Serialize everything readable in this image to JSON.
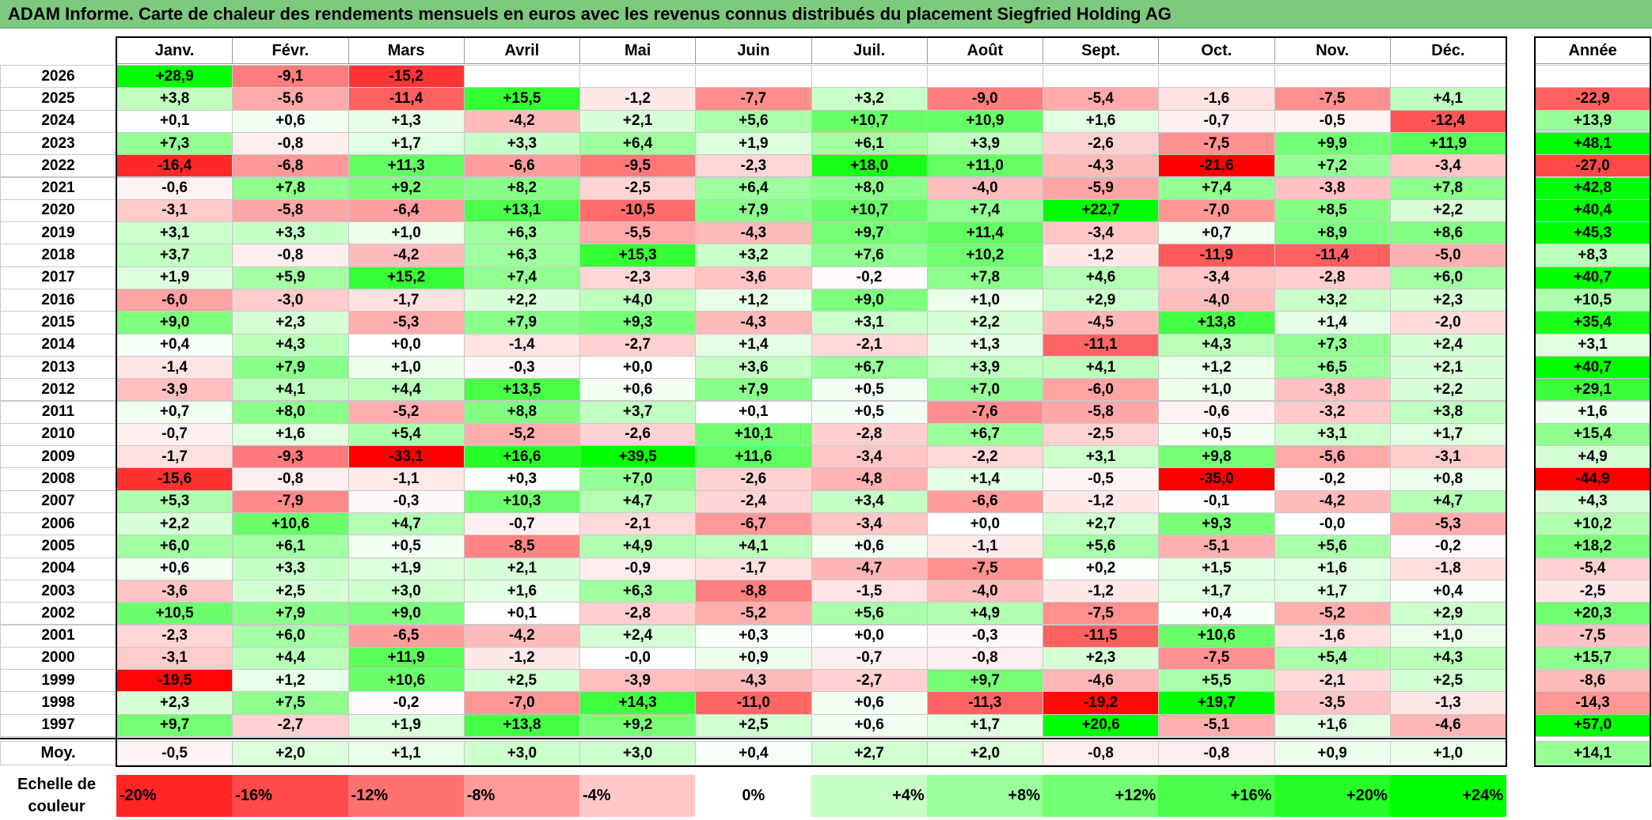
{
  "chart_data": {
    "type": "heatmap",
    "title": "ADAM Informe. Carte de chaleur des rendements mensuels en euros avec les revenus connus distribués du placement Siegfried Holding AG",
    "months": [
      "Janv.",
      "Févr.",
      "Mars",
      "Avril",
      "Mai",
      "Juin",
      "Juil.",
      "Août",
      "Sept.",
      "Oct.",
      "Nov.",
      "Déc."
    ],
    "year_header": "Année",
    "rows": [
      {
        "year": "2026",
        "values": [
          "+28,9",
          "-9,1",
          "-15,2",
          "",
          "",
          "",
          "",
          "",
          "",
          "",
          "",
          ""
        ],
        "annual": ""
      },
      {
        "year": "2025",
        "values": [
          "+3,8",
          "-5,6",
          "-11,4",
          "+15,5",
          "-1,2",
          "-7,7",
          "+3,2",
          "-9,0",
          "-5,4",
          "-1,6",
          "-7,5",
          "+4,1"
        ],
        "annual": "-22,9"
      },
      {
        "year": "2024",
        "values": [
          "+0,1",
          "+0,6",
          "+1,3",
          "-4,2",
          "+2,1",
          "+5,6",
          "+10,7",
          "+10,9",
          "+1,6",
          "-0,7",
          "-0,5",
          "-12,4"
        ],
        "annual": "+13,9"
      },
      {
        "year": "2023",
        "values": [
          "+7,3",
          "-0,8",
          "+1,7",
          "+3,3",
          "+6,4",
          "+1,9",
          "+6,1",
          "+3,9",
          "-2,6",
          "-7,5",
          "+9,9",
          "+11,9"
        ],
        "annual": "+48,1"
      },
      {
        "year": "2022",
        "values": [
          "-16,4",
          "-6,8",
          "+11,3",
          "-6,6",
          "-9,5",
          "-2,3",
          "+18,0",
          "+11,0",
          "-4,3",
          "-21,6",
          "+7,2",
          "-3,4"
        ],
        "annual": "-27,0"
      },
      {
        "year": "2021",
        "values": [
          "-0,6",
          "+7,8",
          "+9,2",
          "+8,2",
          "-2,5",
          "+6,4",
          "+8,0",
          "-4,0",
          "-5,9",
          "+7,4",
          "-3,8",
          "+7,8"
        ],
        "annual": "+42,8"
      },
      {
        "year": "2020",
        "values": [
          "-3,1",
          "-5,8",
          "-6,4",
          "+13,1",
          "-10,5",
          "+7,9",
          "+10,7",
          "+7,4",
          "+22,7",
          "-7,0",
          "+8,5",
          "+2,2"
        ],
        "annual": "+40,4"
      },
      {
        "year": "2019",
        "values": [
          "+3,1",
          "+3,3",
          "+1,0",
          "+6,3",
          "-5,5",
          "-4,3",
          "+9,7",
          "+11,4",
          "-3,4",
          "+0,7",
          "+8,9",
          "+8,6"
        ],
        "annual": "+45,3"
      },
      {
        "year": "2018",
        "values": [
          "+3,7",
          "-0,8",
          "-4,2",
          "+6,3",
          "+15,3",
          "+3,2",
          "+7,6",
          "+10,2",
          "-1,2",
          "-11,9",
          "-11,4",
          "-5,0"
        ],
        "annual": "+8,3"
      },
      {
        "year": "2017",
        "values": [
          "+1,9",
          "+5,9",
          "+15,2",
          "+7,4",
          "-2,3",
          "-3,6",
          "-0,2",
          "+7,8",
          "+4,6",
          "-3,4",
          "-2,8",
          "+6,0"
        ],
        "annual": "+40,7"
      },
      {
        "year": "2016",
        "values": [
          "-6,0",
          "-3,0",
          "-1,7",
          "+2,2",
          "+4,0",
          "+1,2",
          "+9,0",
          "+1,0",
          "+2,9",
          "-4,0",
          "+3,2",
          "+2,3"
        ],
        "annual": "+10,5"
      },
      {
        "year": "2015",
        "values": [
          "+9,0",
          "+2,3",
          "-5,3",
          "+7,9",
          "+9,3",
          "-4,3",
          "+3,1",
          "+2,2",
          "-4,5",
          "+13,8",
          "+1,4",
          "-2,0"
        ],
        "annual": "+35,4"
      },
      {
        "year": "2014",
        "values": [
          "+0,4",
          "+4,3",
          "+0,0",
          "-1,4",
          "-2,7",
          "+1,4",
          "-2,1",
          "+1,3",
          "-11,1",
          "+4,3",
          "+7,3",
          "+2,4"
        ],
        "annual": "+3,1"
      },
      {
        "year": "2013",
        "values": [
          "-1,4",
          "+7,9",
          "+1,0",
          "-0,3",
          "+0,0",
          "+3,6",
          "+6,7",
          "+3,9",
          "+4,1",
          "+1,2",
          "+6,5",
          "+2,1"
        ],
        "annual": "+40,7"
      },
      {
        "year": "2012",
        "values": [
          "-3,9",
          "+4,1",
          "+4,4",
          "+13,5",
          "+0,6",
          "+7,9",
          "+0,5",
          "+7,0",
          "-6,0",
          "+1,0",
          "-3,8",
          "+2,2"
        ],
        "annual": "+29,1"
      },
      {
        "year": "2011",
        "values": [
          "+0,7",
          "+8,0",
          "-5,2",
          "+8,8",
          "+3,7",
          "+0,1",
          "+0,5",
          "-7,6",
          "-5,8",
          "-0,6",
          "-3,2",
          "+3,8"
        ],
        "annual": "+1,6"
      },
      {
        "year": "2010",
        "values": [
          "-0,7",
          "+1,6",
          "+5,4",
          "-5,2",
          "-2,6",
          "+10,1",
          "-2,8",
          "+6,7",
          "-2,5",
          "+0,5",
          "+3,1",
          "+1,7"
        ],
        "annual": "+15,4"
      },
      {
        "year": "2009",
        "values": [
          "-1,7",
          "-9,3",
          "-33,1",
          "+16,6",
          "+39,5",
          "+11,6",
          "-3,4",
          "-2,2",
          "+3,1",
          "+9,8",
          "-5,6",
          "-3,1"
        ],
        "annual": "+4,9"
      },
      {
        "year": "2008",
        "values": [
          "-15,6",
          "-0,8",
          "-1,1",
          "+0,3",
          "+7,0",
          "-2,6",
          "-4,8",
          "+1,4",
          "-0,5",
          "-35,0",
          "-0,2",
          "+0,8"
        ],
        "annual": "-44,9"
      },
      {
        "year": "2007",
        "values": [
          "+5,3",
          "-7,9",
          "-0,3",
          "+10,3",
          "+4,7",
          "-2,4",
          "+3,4",
          "-6,6",
          "-1,2",
          "-0,1",
          "-4,2",
          "+4,7"
        ],
        "annual": "+4,3"
      },
      {
        "year": "2006",
        "values": [
          "+2,2",
          "+10,6",
          "+4,7",
          "-0,7",
          "-2,1",
          "-6,7",
          "-3,4",
          "+0,0",
          "+2,7",
          "+9,3",
          "-0,0",
          "-5,3"
        ],
        "annual": "+10,2"
      },
      {
        "year": "2005",
        "values": [
          "+6,0",
          "+6,1",
          "+0,5",
          "-8,5",
          "+4,9",
          "+4,1",
          "+0,6",
          "-1,1",
          "+5,6",
          "-5,1",
          "+5,6",
          "-0,2"
        ],
        "annual": "+18,2"
      },
      {
        "year": "2004",
        "values": [
          "+0,6",
          "+3,3",
          "+1,9",
          "+2,1",
          "-0,9",
          "-1,7",
          "-4,7",
          "-7,5",
          "+0,2",
          "+1,5",
          "+1,6",
          "-1,8"
        ],
        "annual": "-5,4"
      },
      {
        "year": "2003",
        "values": [
          "-3,6",
          "+2,5",
          "+3,0",
          "+1,6",
          "+6,3",
          "-8,8",
          "-1,5",
          "-4,0",
          "-1,2",
          "+1,7",
          "+1,7",
          "+0,4"
        ],
        "annual": "-2,5"
      },
      {
        "year": "2002",
        "values": [
          "+10,5",
          "+7,9",
          "+9,0",
          "+0,1",
          "-2,8",
          "-5,2",
          "+5,6",
          "+4,9",
          "-7,5",
          "+0,4",
          "-5,2",
          "+2,9"
        ],
        "annual": "+20,3"
      },
      {
        "year": "2001",
        "values": [
          "-2,3",
          "+6,0",
          "-6,5",
          "-4,2",
          "+2,4",
          "+0,3",
          "+0,0",
          "-0,3",
          "-11,5",
          "+10,6",
          "-1,6",
          "+1,0"
        ],
        "annual": "-7,5"
      },
      {
        "year": "2000",
        "values": [
          "-3,1",
          "+4,4",
          "+11,9",
          "-1,2",
          "-0,0",
          "+0,9",
          "-0,7",
          "-0,8",
          "+2,3",
          "-7,5",
          "+5,4",
          "+4,3"
        ],
        "annual": "+15,7"
      },
      {
        "year": "1999",
        "values": [
          "-19,5",
          "+1,2",
          "+10,6",
          "+2,5",
          "-3,9",
          "-4,3",
          "-2,7",
          "+9,7",
          "-4,6",
          "+5,5",
          "-2,1",
          "+2,5"
        ],
        "annual": "-8,6"
      },
      {
        "year": "1998",
        "values": [
          "+2,3",
          "+7,5",
          "-0,2",
          "-7,0",
          "+14,3",
          "-11,0",
          "+0,6",
          "-11,3",
          "-19,2",
          "+19,7",
          "-3,5",
          "-1,3"
        ],
        "annual": "-14,3"
      },
      {
        "year": "1997",
        "values": [
          "+9,7",
          "-2,7",
          "+1,9",
          "+13,8",
          "+9,2",
          "+2,5",
          "+0,6",
          "+1,7",
          "+20,6",
          "-5,1",
          "+1,6",
          "-4,6"
        ],
        "annual": "+57,0"
      }
    ],
    "average": {
      "label": "Moy.",
      "values": [
        "-0,5",
        "+2,0",
        "+1,1",
        "+3,0",
        "+3,0",
        "+0,4",
        "+2,7",
        "+2,0",
        "-0,8",
        "-0,8",
        "+0,9",
        "+1,0"
      ],
      "annual": "+14,1"
    },
    "scale": {
      "label": "Echelle de couleur",
      "stops": [
        "-20%",
        "-16%",
        "-12%",
        "-8%",
        "-4%",
        "0%",
        "+4%",
        "+8%",
        "+12%",
        "+16%",
        "+20%",
        "+24%"
      ],
      "values": [
        -20,
        -16,
        -12,
        -8,
        -4,
        0,
        4,
        8,
        12,
        16,
        20,
        24
      ]
    },
    "colors": {
      "negative": "#ff0000",
      "positive": "#00ff00",
      "neutral": "#ffffff",
      "title_bar": "#7dc97d"
    }
  }
}
